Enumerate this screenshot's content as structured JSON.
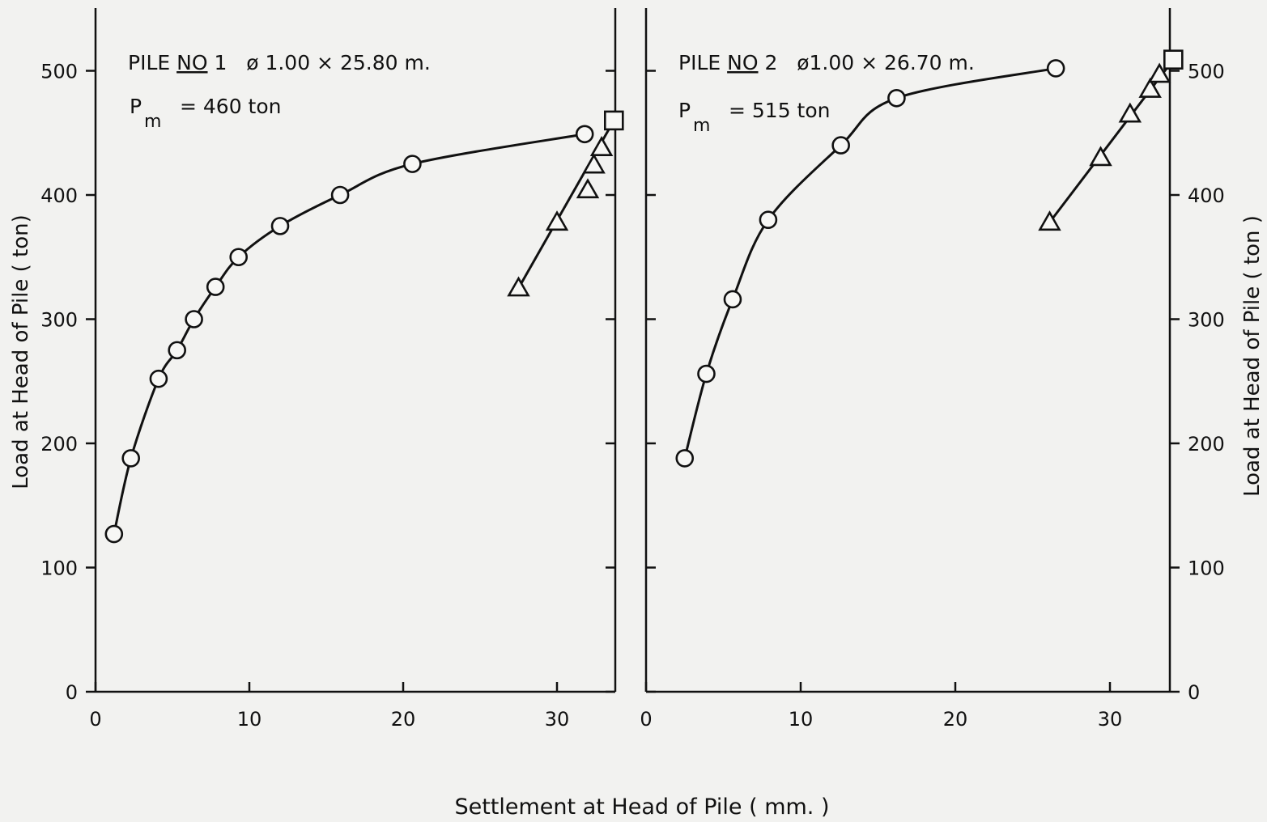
{
  "figure": {
    "xlabel": "Settlement at Head of Pile ( mm. )",
    "ylabel_left": "Load at Head of Pile ( ton)",
    "ylabel_right": "Load at Head of Pile ( ton )"
  },
  "chart_data": [
    {
      "type": "line",
      "name": "pile-1",
      "annotation": {
        "title_prefix": "PILE ",
        "title_no": "NO",
        "title_suffix": " 1   ø 1.00 × 25.80 m.",
        "pm_symbol": "P",
        "pm_subscript": "m",
        "pm_value": "= 460 ton"
      },
      "xlim": [
        0,
        34
      ],
      "ylim": [
        0,
        500
      ],
      "x_ticks": [
        0,
        10,
        20,
        30
      ],
      "y_ticks": [
        0,
        100,
        200,
        300,
        400,
        500
      ],
      "grid": false,
      "series": [
        {
          "marker": "circle",
          "x": [
            1.2,
            2.3,
            4.1,
            5.3,
            6.4,
            7.8,
            9.3,
            12.0,
            15.9,
            20.6,
            31.8
          ],
          "y": [
            127,
            188,
            252,
            275,
            300,
            326,
            350,
            375,
            400,
            425,
            449
          ]
        },
        {
          "marker": "triangle",
          "x": [
            27.5,
            30.0,
            32.0,
            32.4,
            32.9
          ],
          "y": [
            325,
            378,
            404,
            424,
            438
          ]
        },
        {
          "marker": "square",
          "x": [
            33.7
          ],
          "y": [
            460
          ]
        }
      ]
    },
    {
      "type": "line",
      "name": "pile-2",
      "annotation": {
        "title_prefix": "PILE ",
        "title_no": "NO",
        "title_suffix": " 2   ø1.00 × 26.70 m.",
        "pm_symbol": "P",
        "pm_subscript": "m",
        "pm_value": "=  515 ton"
      },
      "xlim": [
        0,
        34
      ],
      "ylim": [
        0,
        500
      ],
      "x_ticks": [
        0,
        10,
        20,
        30
      ],
      "y_ticks": [
        0,
        100,
        200,
        300,
        400,
        500
      ],
      "grid": false,
      "series": [
        {
          "marker": "circle",
          "x": [
            2.5,
            3.9,
            5.6,
            7.9,
            12.6,
            16.2,
            26.5
          ],
          "y": [
            188,
            256,
            316,
            380,
            440,
            478,
            502
          ]
        },
        {
          "marker": "triangle",
          "x": [
            26.1,
            29.4,
            31.3,
            32.6,
            33.2
          ],
          "y": [
            378,
            430,
            465,
            485,
            497
          ]
        },
        {
          "marker": "square",
          "x": [
            34.1
          ],
          "y": [
            509
          ]
        }
      ]
    }
  ]
}
